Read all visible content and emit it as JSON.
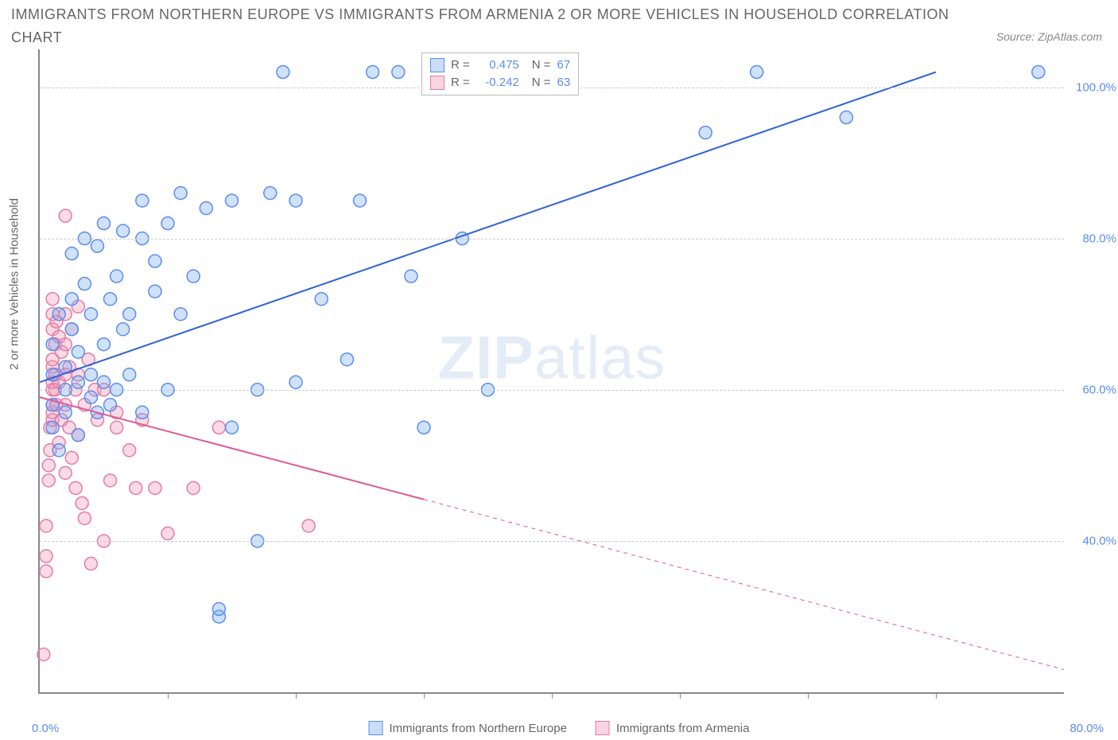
{
  "title_line1": "IMMIGRANTS FROM NORTHERN EUROPE VS IMMIGRANTS FROM ARMENIA 2 OR MORE VEHICLES IN HOUSEHOLD CORRELATION",
  "title_line2": "CHART",
  "source": "Source: ZipAtlas.com",
  "watermark_zip": "ZIP",
  "watermark_atlas": "atlas",
  "y_axis_title": "2 or more Vehicles in Household",
  "x_zero_label": "0.0%",
  "x_right_label": "80.0%",
  "chart": {
    "type": "scatter-correlation",
    "xlim": [
      0,
      80
    ],
    "ylim": [
      20,
      105
    ],
    "background_color": "#ffffff",
    "grid_color": "#cccccc",
    "axis_color": "#888888",
    "y_gridlines": [
      40,
      60,
      80,
      100
    ],
    "y_tick_labels": [
      "40.0%",
      "60.0%",
      "80.0%",
      "100.0%"
    ],
    "x_ticks": [
      10,
      20,
      30,
      40,
      50,
      60,
      70
    ],
    "marker_radius": 8,
    "marker_stroke_width": 1.5,
    "line_width": 2,
    "series": {
      "blue": {
        "label": "Immigrants from Northern Europe",
        "fill": "rgba(120,170,240,0.35)",
        "stroke": "#5b8def",
        "line_color": "#2e62d9",
        "R": "0.475",
        "N": "67",
        "trend": {
          "x0": 0,
          "y0": 61,
          "x1": 70,
          "y1": 102,
          "dashed_after_x": null
        },
        "points": [
          [
            1,
            55
          ],
          [
            1,
            58
          ],
          [
            1,
            62
          ],
          [
            1,
            66
          ],
          [
            1.5,
            70
          ],
          [
            1.5,
            52
          ],
          [
            2,
            60
          ],
          [
            2,
            63
          ],
          [
            2,
            57
          ],
          [
            2.5,
            68
          ],
          [
            2.5,
            72
          ],
          [
            2.5,
            78
          ],
          [
            3,
            54
          ],
          [
            3,
            61
          ],
          [
            3,
            65
          ],
          [
            3.5,
            74
          ],
          [
            3.5,
            80
          ],
          [
            4,
            59
          ],
          [
            4,
            62
          ],
          [
            4,
            70
          ],
          [
            4.5,
            57
          ],
          [
            4.5,
            79
          ],
          [
            5,
            61
          ],
          [
            5,
            66
          ],
          [
            5,
            82
          ],
          [
            5.5,
            58
          ],
          [
            5.5,
            72
          ],
          [
            6,
            60
          ],
          [
            6,
            75
          ],
          [
            6.5,
            68
          ],
          [
            6.5,
            81
          ],
          [
            7,
            62
          ],
          [
            7,
            70
          ],
          [
            8,
            57
          ],
          [
            8,
            80
          ],
          [
            8,
            85
          ],
          [
            9,
            73
          ],
          [
            9,
            77
          ],
          [
            10,
            60
          ],
          [
            10,
            82
          ],
          [
            11,
            70
          ],
          [
            11,
            86
          ],
          [
            12,
            75
          ],
          [
            13,
            84
          ],
          [
            14,
            30
          ],
          [
            14,
            31
          ],
          [
            15,
            55
          ],
          [
            15,
            85
          ],
          [
            17,
            40
          ],
          [
            17,
            60
          ],
          [
            18,
            86
          ],
          [
            19,
            102
          ],
          [
            20,
            61
          ],
          [
            20,
            85
          ],
          [
            22,
            72
          ],
          [
            24,
            64
          ],
          [
            25,
            85
          ],
          [
            26,
            102
          ],
          [
            29,
            75
          ],
          [
            30,
            55
          ],
          [
            28,
            102
          ],
          [
            33,
            80
          ],
          [
            35,
            60
          ],
          [
            52,
            94
          ],
          [
            56,
            102
          ],
          [
            63,
            96
          ],
          [
            78,
            102
          ]
        ]
      },
      "pink": {
        "label": "Immigrants from Armenia",
        "fill": "rgba(240,150,180,0.35)",
        "stroke": "#e57ba5",
        "line_color": "#e15894",
        "R": "-0.242",
        "N": "63",
        "trend": {
          "x0": 0,
          "y0": 59,
          "x1": 80,
          "y1": 23,
          "dashed_after_x": 30
        },
        "points": [
          [
            0.3,
            25
          ],
          [
            0.5,
            36
          ],
          [
            0.5,
            38
          ],
          [
            0.5,
            42
          ],
          [
            0.7,
            48
          ],
          [
            0.7,
            50
          ],
          [
            0.8,
            52
          ],
          [
            0.8,
            55
          ],
          [
            1,
            56
          ],
          [
            1,
            57
          ],
          [
            1,
            58
          ],
          [
            1,
            60
          ],
          [
            1,
            61
          ],
          [
            1,
            63
          ],
          [
            1,
            64
          ],
          [
            1,
            68
          ],
          [
            1,
            70
          ],
          [
            1,
            72
          ],
          [
            1.2,
            60
          ],
          [
            1.2,
            62
          ],
          [
            1.2,
            66
          ],
          [
            1.3,
            58
          ],
          [
            1.3,
            69
          ],
          [
            1.5,
            53
          ],
          [
            1.5,
            61
          ],
          [
            1.5,
            67
          ],
          [
            1.7,
            56
          ],
          [
            1.7,
            65
          ],
          [
            2,
            49
          ],
          [
            2,
            58
          ],
          [
            2,
            62
          ],
          [
            2,
            66
          ],
          [
            2,
            70
          ],
          [
            2,
            83
          ],
          [
            2.3,
            55
          ],
          [
            2.3,
            63
          ],
          [
            2.5,
            51
          ],
          [
            2.5,
            68
          ],
          [
            2.8,
            47
          ],
          [
            2.8,
            60
          ],
          [
            3,
            54
          ],
          [
            3,
            62
          ],
          [
            3,
            71
          ],
          [
            3.3,
            45
          ],
          [
            3.5,
            43
          ],
          [
            3.5,
            58
          ],
          [
            3.8,
            64
          ],
          [
            4,
            37
          ],
          [
            4.3,
            60
          ],
          [
            4.5,
            56
          ],
          [
            5,
            40
          ],
          [
            5,
            60
          ],
          [
            5.5,
            48
          ],
          [
            6,
            55
          ],
          [
            6,
            57
          ],
          [
            7,
            52
          ],
          [
            7.5,
            47
          ],
          [
            8,
            56
          ],
          [
            9,
            47
          ],
          [
            10,
            41
          ],
          [
            12,
            47
          ],
          [
            14,
            55
          ],
          [
            21,
            42
          ]
        ]
      }
    }
  },
  "legend_box": {
    "R_label": "R =",
    "N_label": "N ="
  },
  "colors": {
    "title": "#666666",
    "label_blue": "#5b8def"
  }
}
